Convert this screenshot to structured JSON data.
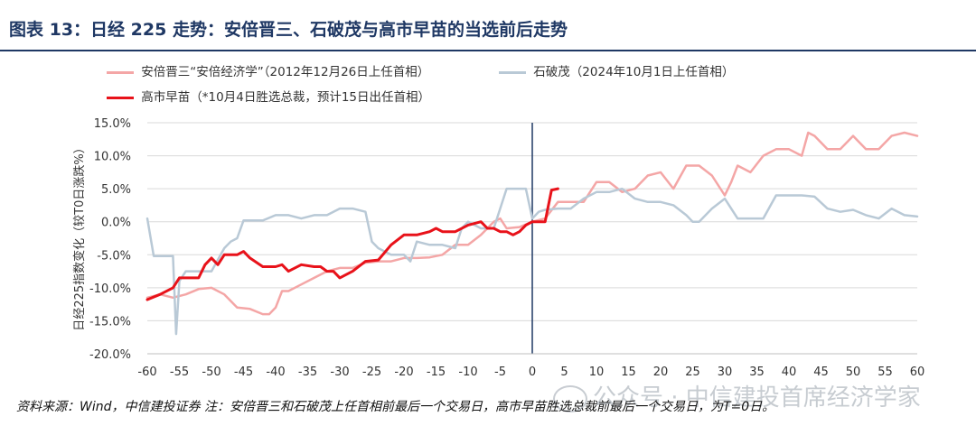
{
  "figure": {
    "title": "图表 13：日经 225 走势：安倍晋三、石破茂与高市早苗的当选前后走势",
    "source_note": "资料来源：Wind，中信建投证券 注：安倍晋三和石破茂上任首相前最后一个交易日，高市早苗胜选总裁前最后一个交易日，为T=0日。",
    "watermark": "公众号 · 中信建投首席经济学家"
  },
  "chart_data": {
    "type": "line",
    "ylabel": "日经225指数变化（较T0日涨跌%）",
    "xlim": [
      -60,
      60
    ],
    "ylim": [
      -20,
      15
    ],
    "x_ticks": [
      "-60",
      "-55",
      "-50",
      "-45",
      "-40",
      "-35",
      "-30",
      "-25",
      "-20",
      "-15",
      "-10",
      "-5",
      "0",
      "5",
      "10",
      "15",
      "20",
      "25",
      "30",
      "35",
      "40",
      "45",
      "50",
      "55",
      "60"
    ],
    "y_ticks": [
      "15.0%",
      "10.0%",
      "5.0%",
      "0.0%",
      "-5.0%",
      "-10.0%",
      "-15.0%",
      "-20.0%"
    ],
    "grid": "horizontal",
    "vertical_marker_x": 0,
    "legend_position": "top",
    "series": [
      {
        "name": "安倍晋三“安倍经济学”（2012年12月26日上任首相）",
        "color": "#f4a6a6",
        "x": [
          -60,
          -58,
          -56,
          -54,
          -52,
          -50,
          -48,
          -46,
          -44,
          -42,
          -41,
          -40,
          -39,
          -38,
          -36,
          -34,
          -32,
          -30,
          -28,
          -26,
          -24,
          -22,
          -20,
          -18,
          -16,
          -14,
          -12,
          -10,
          -8,
          -6,
          -5,
          -4,
          -2,
          0,
          2,
          4,
          6,
          8,
          10,
          12,
          14,
          16,
          18,
          20,
          22,
          24,
          26,
          28,
          30,
          31,
          32,
          34,
          36,
          38,
          40,
          42,
          43,
          44,
          46,
          48,
          50,
          52,
          54,
          56,
          58,
          60
        ],
        "y": [
          -11.5,
          -11,
          -11.5,
          -11,
          -10.2,
          -10,
          -11,
          -13,
          -13.2,
          -14,
          -14,
          -13,
          -10.5,
          -10.5,
          -9.5,
          -8.5,
          -7.5,
          -7,
          -7,
          -6.2,
          -6,
          -6,
          -5.5,
          -5.5,
          -5.4,
          -5,
          -3.5,
          -3.5,
          -2,
          0,
          0.5,
          -1,
          -0.8,
          0,
          0.5,
          3,
          3,
          3,
          6,
          6,
          4.5,
          5,
          7,
          7.5,
          5,
          8.5,
          8.5,
          7,
          4,
          6,
          8.5,
          7.5,
          10,
          11,
          11,
          10,
          13.5,
          13,
          11,
          11,
          13,
          11,
          11,
          13,
          13.5,
          13
        ]
      },
      {
        "name": "石破茂（2024年10月1日上任首相）",
        "color": "#b9c9d6",
        "x": [
          -60,
          -59,
          -58,
          -56,
          -55.5,
          -55,
          -54,
          -52,
          -50,
          -48,
          -47,
          -46,
          -45,
          -44,
          -42,
          -40,
          -38,
          -36,
          -34,
          -32,
          -30,
          -28,
          -26,
          -25,
          -24,
          -22,
          -20,
          -19,
          -18,
          -16,
          -14,
          -12,
          -11,
          -10,
          -8,
          -6,
          -4,
          -3,
          -2,
          -1,
          0,
          1,
          2,
          4,
          6,
          8,
          10,
          12,
          14,
          16,
          18,
          20,
          22,
          24,
          25,
          26,
          28,
          30,
          32,
          34,
          36,
          38,
          40,
          42,
          44,
          46,
          48,
          50,
          52,
          54,
          56,
          58,
          60
        ],
        "y": [
          0.5,
          -5.2,
          -5.2,
          -5.2,
          -17,
          -9,
          -7.5,
          -7.5,
          -7.5,
          -4,
          -3,
          -2.5,
          0.2,
          0.2,
          0.2,
          1,
          1,
          0.5,
          1,
          1,
          2,
          2,
          1.5,
          -3,
          -4,
          -5,
          -5,
          -6,
          -3,
          -3.5,
          -3.5,
          -4,
          -1,
          0,
          -1,
          -1,
          5,
          5,
          5,
          5,
          0.5,
          1.5,
          1.8,
          2,
          2,
          3.5,
          4.5,
          4.5,
          5,
          3.5,
          3,
          3,
          2.5,
          1,
          0,
          0,
          2,
          3.5,
          0.5,
          0.5,
          0.5,
          4,
          4,
          4,
          3.8,
          2,
          1.5,
          1.8,
          1,
          0.5,
          2,
          1,
          0.8
        ]
      },
      {
        "name": "高市早苗（*10月4日胜选总裁，预计15日出任首相）",
        "color": "#e8121a",
        "x": [
          -60,
          -58,
          -56,
          -55,
          -54,
          -53,
          -52,
          -51,
          -50,
          -49,
          -48,
          -46,
          -45,
          -44,
          -42,
          -40,
          -39,
          -38,
          -36,
          -34,
          -33,
          -32,
          -31,
          -30,
          -28,
          -26,
          -24,
          -22,
          -20,
          -18,
          -16,
          -15,
          -14,
          -12,
          -10,
          -8,
          -7,
          -6,
          -5,
          -4,
          -3,
          -2,
          -1,
          0,
          1,
          2,
          3,
          4
        ],
        "y": [
          -11.8,
          -11,
          -10,
          -8.5,
          -8.5,
          -8.5,
          -8.5,
          -6.5,
          -5.5,
          -6.5,
          -5,
          -5,
          -4.5,
          -5.5,
          -6.8,
          -6.8,
          -6.5,
          -7.5,
          -6.5,
          -6.8,
          -6.8,
          -7.5,
          -7.5,
          -8.5,
          -7.5,
          -6,
          -5.8,
          -3.5,
          -2,
          -2,
          -1.5,
          -1,
          -1.5,
          -1.5,
          -0.5,
          0,
          -1,
          -1,
          -1.5,
          -1.5,
          -2,
          -1.5,
          -0.5,
          0,
          0,
          0,
          4.8,
          5
        ]
      }
    ]
  }
}
